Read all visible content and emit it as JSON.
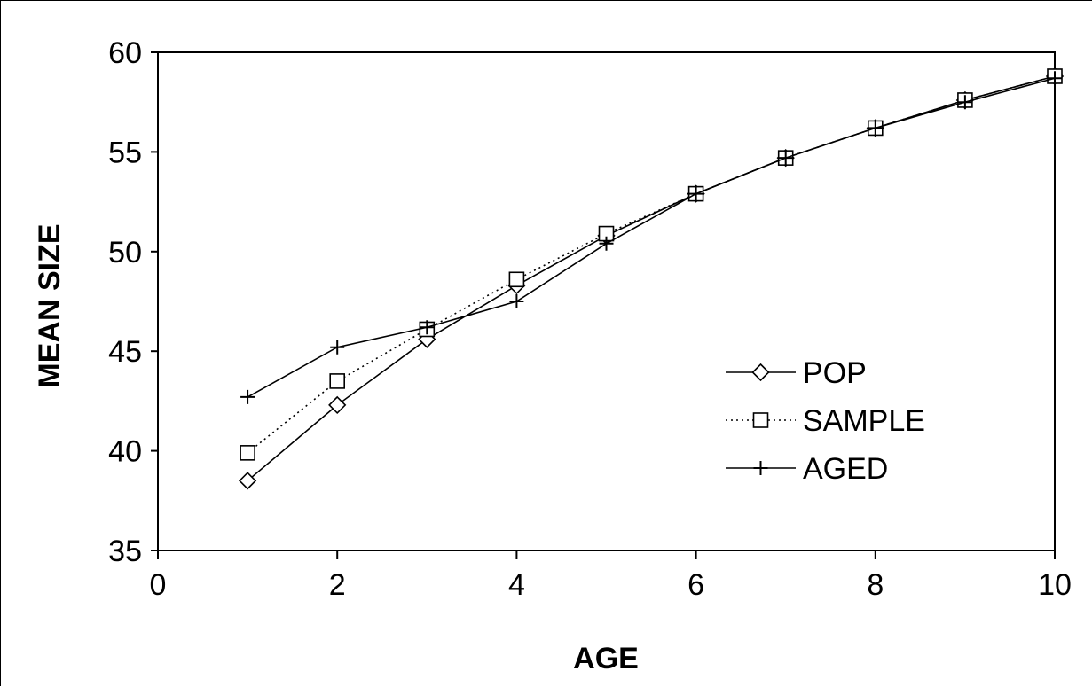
{
  "chart_data": {
    "type": "line",
    "title": "",
    "xlabel": "AGE",
    "ylabel": "MEAN SIZE",
    "xlim": [
      0,
      10
    ],
    "ylim": [
      35,
      60
    ],
    "x_ticks": [
      0,
      2,
      4,
      6,
      8,
      10
    ],
    "y_ticks": [
      35,
      40,
      45,
      50,
      55,
      60
    ],
    "grid": false,
    "legend_position": "right-center",
    "x": [
      1,
      2,
      3,
      4,
      5,
      6,
      7,
      8,
      9,
      10
    ],
    "series": [
      {
        "name": "POP",
        "marker": "diamond",
        "line": "solid",
        "values": [
          38.5,
          42.3,
          45.6,
          48.3,
          50.8,
          52.9,
          54.7,
          56.2,
          57.6,
          58.8
        ]
      },
      {
        "name": "SAMPLE",
        "marker": "square",
        "line": "dotted",
        "values": [
          39.9,
          43.5,
          46.1,
          48.6,
          50.9,
          52.9,
          54.7,
          56.2,
          57.6,
          58.8
        ]
      },
      {
        "name": "AGED",
        "marker": "plus",
        "line": "solid",
        "values": [
          42.7,
          45.2,
          46.2,
          47.5,
          50.4,
          52.9,
          54.7,
          56.2,
          57.5,
          58.7
        ]
      }
    ]
  }
}
